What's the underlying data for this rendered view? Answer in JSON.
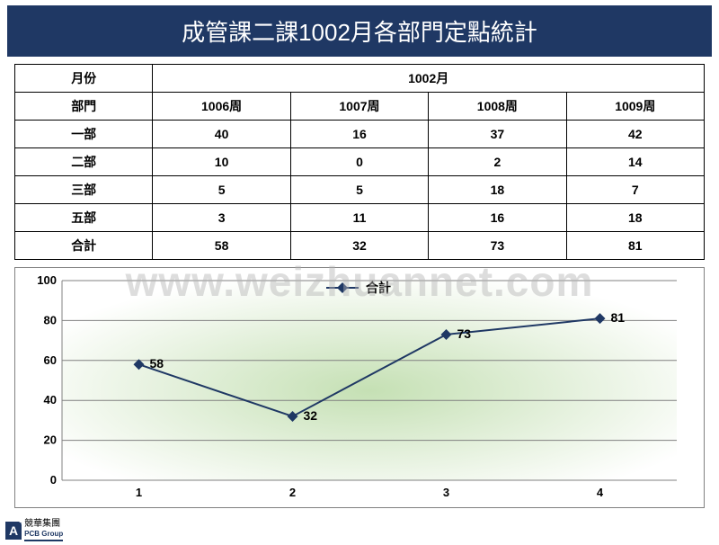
{
  "title": "成管課二課1002月各部門定點統計",
  "table": {
    "month_label": "月份",
    "month_value": "1002月",
    "dept_label": "部門",
    "week_headers": [
      "1006周",
      "1007周",
      "1008周",
      "1009周"
    ],
    "rows": [
      {
        "label": "一部",
        "vals": [
          "40",
          "16",
          "37",
          "42"
        ]
      },
      {
        "label": "二部",
        "vals": [
          "10",
          "0",
          "2",
          "14"
        ]
      },
      {
        "label": "三部",
        "vals": [
          "5",
          "5",
          "18",
          "7"
        ]
      },
      {
        "label": "五部",
        "vals": [
          "3",
          "11",
          "16",
          "18"
        ]
      },
      {
        "label": "合計",
        "vals": [
          "58",
          "32",
          "73",
          "81"
        ]
      }
    ]
  },
  "chart": {
    "type": "line",
    "legend_label": "合計",
    "x_categories": [
      "1",
      "2",
      "3",
      "4"
    ],
    "series": [
      58,
      32,
      73,
      81
    ],
    "ylim": [
      0,
      100
    ],
    "ytick_step": 20,
    "line_color": "#1f3864",
    "marker_color": "#1f3864",
    "marker_size": 6,
    "line_width": 2,
    "grid_color": "#808080",
    "bg_gradient_center": "#c5e0b4",
    "bg_gradient_edge": "#ffffff",
    "label_color": "#000000",
    "label_fontsize": 14,
    "axis_fontsize": 13
  },
  "watermark": "www.weizhuannet.com",
  "footer": {
    "logo_letter": "A",
    "logo_plus": "+",
    "brand_top": "競華集團",
    "brand_sub": "PCB Group"
  },
  "colors": {
    "title_bg": "#1f3864",
    "title_fg": "#ffffff",
    "border": "#000000"
  }
}
